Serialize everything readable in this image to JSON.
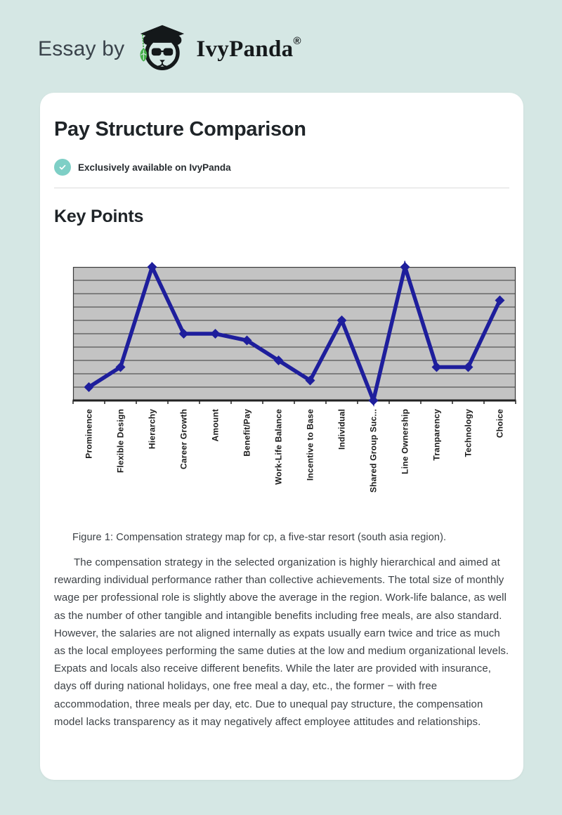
{
  "header": {
    "essay_by": "Essay by",
    "brand": "IvyPanda",
    "reg_mark": "®"
  },
  "card": {
    "title": "Pay Structure Comparison",
    "badge_text": "Exclusively available on IvyPanda",
    "section_heading": "Key Points",
    "figure_caption": "Figure 1: Compensation strategy map for cp, a five-star resort (south asia region).",
    "paragraph": "The compensation strategy in the selected organization is highly hierarchical and aimed at rewarding individual performance rather than collective achievements. The total size of monthly wage per professional role is slightly above the average in the region. Work-life balance, as well as the number of other tangible and intangible benefits including free meals, are also standard. However, the salaries are not aligned internally as expats usually earn twice and trice as much as the local employees performing the same duties at the low and medium organizational levels. Expats and locals also receive different benefits. While the later are provided with insurance, days off during national holidays, one free meal a day, etc., the former − with free accommodation, three meals per day, etc. Due to unequal pay structure, the compensation model lacks transparency as it may negatively affect employee attitudes and relationships."
  },
  "colors": {
    "page_bg": "#d5e7e4",
    "card_bg": "#ffffff",
    "accent_teal": "#7ecfc6",
    "chart_line": "#1e1e9c",
    "chart_plot_bg": "#c3c3c3",
    "chart_grid": "#3a3a3a",
    "chart_axis": "#222222",
    "chart_label": "#1a1a1a",
    "logo_dark": "#14181a",
    "logo_green": "#46b04a"
  },
  "chart_data": {
    "type": "line",
    "title": "",
    "xlabel": "",
    "ylabel": "",
    "legend": "none",
    "marker": "diamond",
    "grid": "horizontal",
    "ylim": [
      0,
      10
    ],
    "gridline_step": 1,
    "categories": [
      "Prominence",
      "Flexible Design",
      "Hierarchy",
      "Career Growth",
      "Amount",
      "Benefit/Pay",
      "Work-Life Balance",
      "Incentive to Base",
      "Individual",
      "Shared Group Suc...",
      "Line Ownership",
      "Tranparency",
      "Technology",
      "Choice"
    ],
    "values": [
      1,
      2.5,
      10,
      5,
      5,
      4.5,
      3,
      1.5,
      6,
      0,
      10,
      2.5,
      2.5,
      7.5
    ]
  }
}
